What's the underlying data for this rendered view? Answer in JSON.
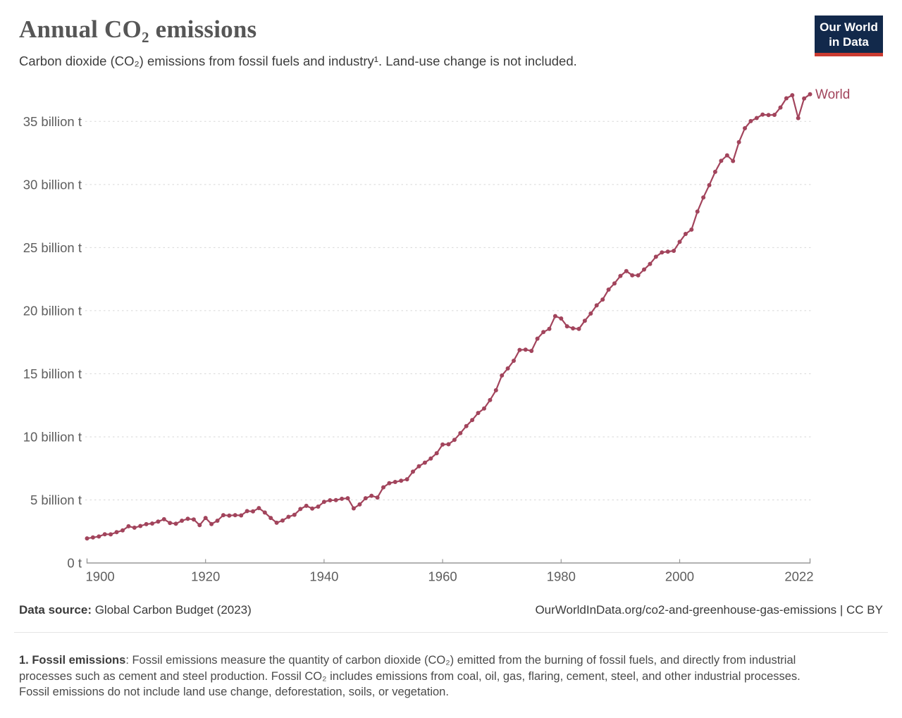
{
  "header": {
    "title": "Annual CO₂ emissions",
    "subtitle": "Carbon dioxide (CO₂) emissions from fossil fuels and industry¹. Land-use change is not included.",
    "logo": {
      "line1": "Our World",
      "line2": "in Data"
    }
  },
  "colors": {
    "series_world": "#a2445c",
    "logo_navy": "#12294b",
    "logo_red": "#cb3b31",
    "axis": "#989898",
    "gridline": "#d7d7d7",
    "tick_label": "#5e5e5e"
  },
  "chart_data": {
    "type": "line",
    "title": "Annual CO₂ emissions",
    "xlabel": "",
    "ylabel": "",
    "unit": "billion t",
    "grid": "horizontal dashed",
    "legend_position": "end-of-line label",
    "x_domain": [
      1900,
      2022
    ],
    "y_domain": [
      0,
      37.5
    ],
    "y_ticks": [
      {
        "value": 0,
        "label": "0 t"
      },
      {
        "value": 5,
        "label": "5 billion t"
      },
      {
        "value": 10,
        "label": "10 billion t"
      },
      {
        "value": 15,
        "label": "15 billion t"
      },
      {
        "value": 20,
        "label": "20 billion t"
      },
      {
        "value": 25,
        "label": "25 billion t"
      },
      {
        "value": 30,
        "label": "30 billion t"
      },
      {
        "value": 35,
        "label": "35 billion t"
      }
    ],
    "x_ticks": [
      {
        "value": 1900,
        "label": "1900",
        "edge": "left"
      },
      {
        "value": 1920,
        "label": "1920"
      },
      {
        "value": 1940,
        "label": "1940"
      },
      {
        "value": 1960,
        "label": "1960"
      },
      {
        "value": 1980,
        "label": "1980"
      },
      {
        "value": 2000,
        "label": "2000"
      },
      {
        "value": 2022,
        "label": "2022",
        "edge": "right"
      }
    ],
    "series": [
      {
        "name": "World",
        "color": "#a2445c",
        "x": [
          1900,
          1901,
          1902,
          1903,
          1904,
          1905,
          1906,
          1907,
          1908,
          1909,
          1910,
          1911,
          1912,
          1913,
          1914,
          1915,
          1916,
          1917,
          1918,
          1919,
          1920,
          1921,
          1922,
          1923,
          1924,
          1925,
          1926,
          1927,
          1928,
          1929,
          1930,
          1931,
          1932,
          1933,
          1934,
          1935,
          1936,
          1937,
          1938,
          1939,
          1940,
          1941,
          1942,
          1943,
          1944,
          1945,
          1946,
          1947,
          1948,
          1949,
          1950,
          1951,
          1952,
          1953,
          1954,
          1955,
          1956,
          1957,
          1958,
          1959,
          1960,
          1961,
          1962,
          1963,
          1964,
          1965,
          1966,
          1967,
          1968,
          1969,
          1970,
          1971,
          1972,
          1973,
          1974,
          1975,
          1976,
          1977,
          1978,
          1979,
          1980,
          1981,
          1982,
          1983,
          1984,
          1985,
          1986,
          1987,
          1988,
          1989,
          1990,
          1991,
          1992,
          1993,
          1994,
          1995,
          1996,
          1997,
          1998,
          1999,
          2000,
          2001,
          2002,
          2003,
          2004,
          2005,
          2006,
          2007,
          2008,
          2009,
          2010,
          2011,
          2012,
          2013,
          2014,
          2015,
          2016,
          2017,
          2018,
          2019,
          2020,
          2021,
          2022
        ],
        "values": [
          1.95,
          2.02,
          2.1,
          2.28,
          2.27,
          2.44,
          2.58,
          2.91,
          2.8,
          2.93,
          3.08,
          3.13,
          3.28,
          3.47,
          3.17,
          3.11,
          3.35,
          3.5,
          3.45,
          3.0,
          3.57,
          3.09,
          3.35,
          3.79,
          3.76,
          3.79,
          3.77,
          4.11,
          4.09,
          4.35,
          4.0,
          3.57,
          3.19,
          3.37,
          3.66,
          3.82,
          4.28,
          4.53,
          4.31,
          4.47,
          4.85,
          4.97,
          4.98,
          5.09,
          5.13,
          4.33,
          4.64,
          5.13,
          5.33,
          5.19,
          6.0,
          6.33,
          6.42,
          6.52,
          6.63,
          7.24,
          7.67,
          7.95,
          8.28,
          8.7,
          9.39,
          9.41,
          9.76,
          10.29,
          10.85,
          11.33,
          11.89,
          12.25,
          12.91,
          13.69,
          14.86,
          15.42,
          16.03,
          16.89,
          16.91,
          16.81,
          17.78,
          18.3,
          18.55,
          19.57,
          19.38,
          18.76,
          18.6,
          18.55,
          19.2,
          19.77,
          20.42,
          20.88,
          21.67,
          22.16,
          22.75,
          23.14,
          22.8,
          22.8,
          23.26,
          23.7,
          24.27,
          24.62,
          24.68,
          24.74,
          25.45,
          26.08,
          26.42,
          27.85,
          28.97,
          29.95,
          31.0,
          31.88,
          32.31,
          31.86,
          33.35,
          34.46,
          35.02,
          35.27,
          35.54,
          35.5,
          35.52,
          36.1,
          36.83,
          37.08,
          35.26,
          36.82,
          37.15
        ]
      }
    ]
  },
  "footer": {
    "data_source_label": "Data source:",
    "data_source_value": " Global Carbon Budget (2023)",
    "attribution": "OurWorldInData.org/co2-and-greenhouse-gas-emissions | CC BY"
  },
  "footnote": {
    "label": "1. Fossil emissions",
    "text": ": Fossil emissions measure the quantity of carbon dioxide (CO₂) emitted from the burning of fossil fuels, and directly from industrial processes such as cement and steel production. Fossil CO₂ includes emissions from coal, oil, gas, flaring, cement, steel, and other industrial processes. Fossil emissions do not include land use change, deforestation, soils, or vegetation."
  }
}
